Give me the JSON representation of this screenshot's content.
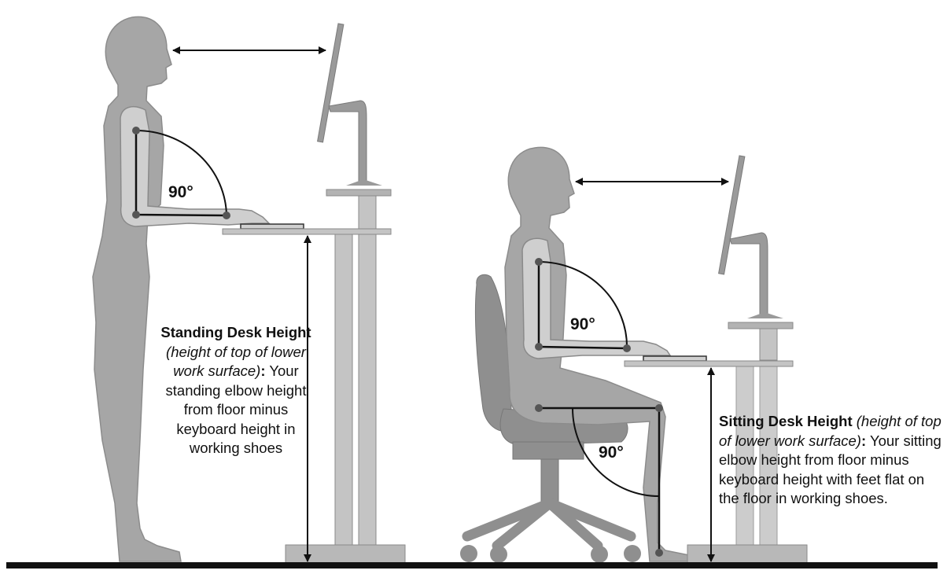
{
  "standing": {
    "angle_label": "90°",
    "caption": {
      "title": "Standing Desk Height",
      "note": "(height of top of lower work surface)",
      "colon": ":",
      "body": "Your standing elbow height from floor minus keyboard height in working shoes"
    }
  },
  "sitting": {
    "elbow_angle_label": "90°",
    "knee_angle_label": "90°",
    "caption": {
      "title": "Sitting Desk Height",
      "note": "(height of top of lower work surface)",
      "colon": ":",
      "body": "Your sitting elbow height from floor minus keyboard height with feet flat on the floor in working shoes."
    }
  },
  "colors": {
    "body_fill": "#a6a6a6",
    "body_stroke": "#808080",
    "arm_fill": "#cfcfcf",
    "furniture_fill": "#b3b3b3",
    "chair_fill": "#8f8f8f",
    "floor": "#111111"
  }
}
